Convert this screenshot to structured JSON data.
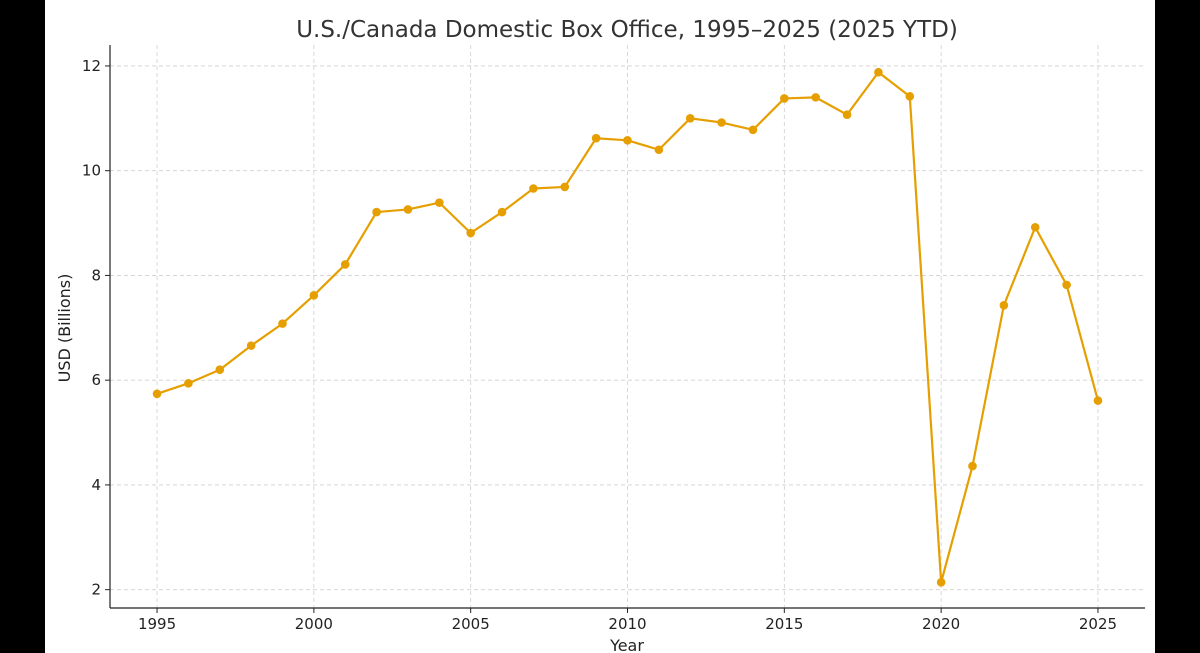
{
  "chart_data": {
    "type": "line",
    "title": "U.S./Canada Domestic Box Office, 1995–2025 (2025 YTD)",
    "xlabel": "Year",
    "ylabel": "USD (Billions)",
    "xlim": [
      1993.5,
      2026.5
    ],
    "ylim": [
      1.65,
      12.4
    ],
    "xticks": [
      1995,
      2000,
      2005,
      2010,
      2015,
      2020,
      2025
    ],
    "yticks": [
      2,
      4,
      6,
      8,
      10,
      12
    ],
    "grid": true,
    "color": "#E69F00",
    "x": [
      1995,
      1996,
      1997,
      1998,
      1999,
      2000,
      2001,
      2002,
      2003,
      2004,
      2005,
      2006,
      2007,
      2008,
      2009,
      2010,
      2011,
      2012,
      2013,
      2014,
      2015,
      2016,
      2017,
      2018,
      2019,
      2020,
      2021,
      2022,
      2023,
      2024,
      2025
    ],
    "series": [
      {
        "values": [
          5.74,
          5.94,
          6.2,
          6.66,
          7.08,
          7.62,
          8.21,
          9.21,
          9.26,
          9.39,
          8.81,
          9.21,
          9.66,
          9.69,
          10.62,
          10.58,
          10.4,
          11.0,
          10.92,
          10.78,
          11.38,
          11.4,
          11.07,
          11.88,
          11.42,
          2.14,
          4.36,
          7.43,
          8.92,
          7.82,
          5.61
        ]
      }
    ]
  }
}
